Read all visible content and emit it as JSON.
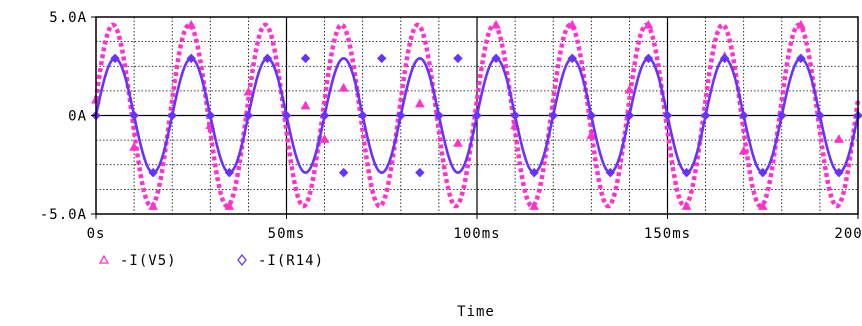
{
  "chart_data": {
    "type": "line",
    "title": "",
    "xlabel": "Time",
    "ylabel": "",
    "xlim": [
      0,
      200
    ],
    "ylim": [
      -5,
      5
    ],
    "x_unit": "ms",
    "y_unit": "A",
    "x_tick_values": [
      0,
      50,
      100,
      150,
      200
    ],
    "x_tick_labels": [
      "0s",
      "50ms",
      "100ms",
      "150ms",
      "200ms"
    ],
    "y_tick_values": [
      -5,
      0,
      5
    ],
    "y_tick_labels": [
      "-5.0A",
      "0A",
      "5.0A"
    ],
    "grid": true,
    "legend_position": "bottom-left",
    "series": [
      {
        "name": "-I(V5)",
        "color": "#ff33cc",
        "marker": "triangle",
        "style": "dotted",
        "amplitude": 4.6,
        "frequency_hz": 50,
        "phase_deg": 10,
        "marker_x": [
          0,
          10,
          15,
          25,
          30,
          35,
          40,
          55,
          60,
          65,
          85,
          95,
          105,
          110,
          115,
          125,
          130,
          140,
          145,
          155,
          165,
          170,
          175,
          185,
          195
        ],
        "marker_y": [
          0.8,
          -1.6,
          -4.6,
          4.6,
          -0.5,
          -4.6,
          1.2,
          0.5,
          -1.2,
          1.4,
          0.6,
          -1.4,
          4.6,
          -0.5,
          -4.6,
          4.6,
          -1.0,
          1.3,
          4.6,
          -4.6,
          3.0,
          -1.8,
          -4.6,
          4.6,
          -1.2
        ]
      },
      {
        "name": "-I(R14)",
        "color": "#6633ff",
        "marker": "diamond",
        "style": "solid",
        "amplitude": 2.9,
        "frequency_hz": 50,
        "phase_deg": 0,
        "marker_x": [
          0,
          5,
          10,
          15,
          20,
          25,
          30,
          35,
          40,
          45,
          50,
          55,
          60,
          65,
          70,
          75,
          80,
          85,
          90,
          95,
          100,
          105,
          110,
          115,
          120,
          125,
          130,
          135,
          140,
          145,
          150,
          155,
          160,
          165,
          170,
          175,
          180,
          185,
          190,
          195,
          200
        ],
        "marker_y": [
          0,
          2.9,
          0,
          -2.9,
          0,
          2.9,
          0,
          -2.9,
          0,
          2.9,
          0,
          2.9,
          0,
          -2.9,
          0,
          2.9,
          0,
          -2.9,
          0,
          2.9,
          0,
          2.9,
          0,
          -2.9,
          0,
          2.9,
          0,
          -2.9,
          0,
          2.9,
          0,
          -2.9,
          0,
          2.9,
          0,
          -2.9,
          0,
          2.9,
          0,
          -2.9,
          0
        ]
      }
    ]
  }
}
